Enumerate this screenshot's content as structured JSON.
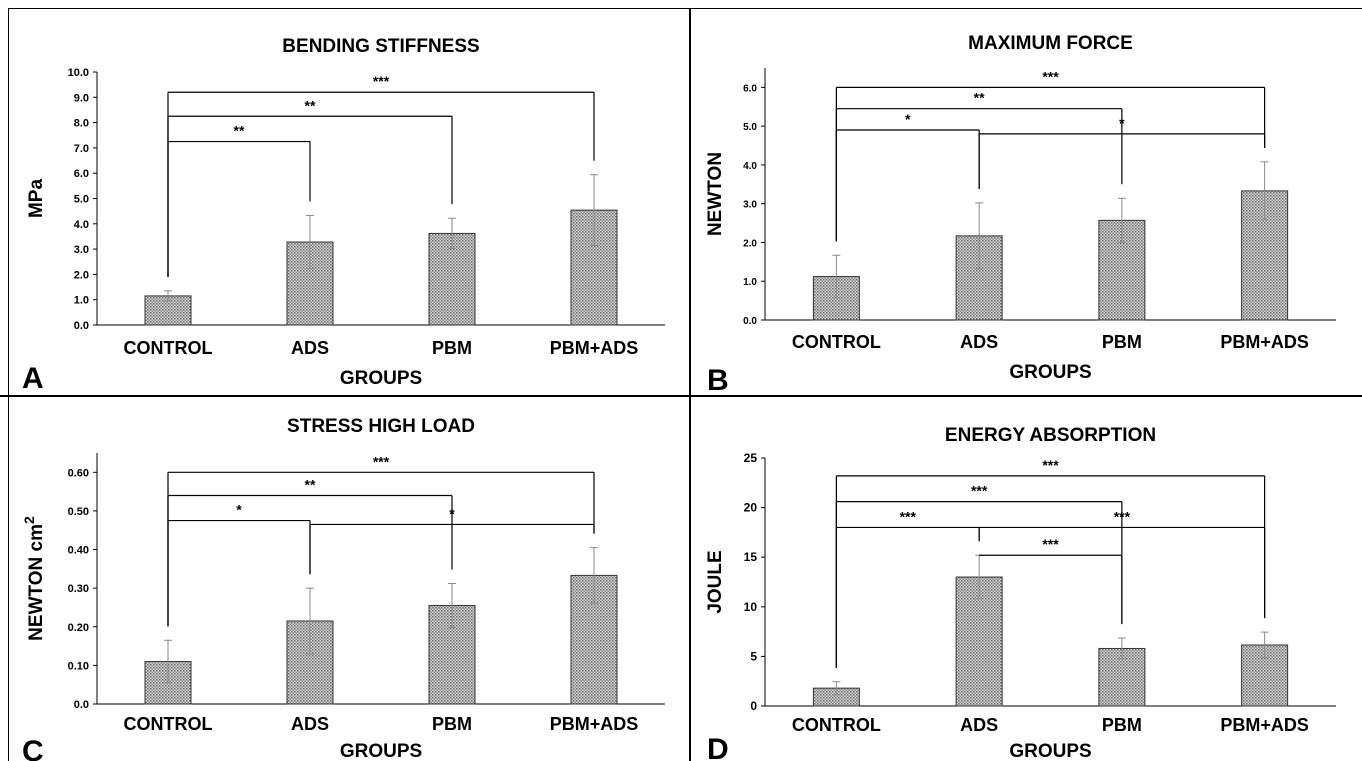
{
  "chart_data": [
    {
      "id": "A",
      "type": "bar",
      "panel_letter": "A",
      "title": "BENDING STIFFNESS",
      "xlabel": "GROUPS",
      "ylabel": "MPa",
      "categories": [
        "CONTROL",
        "ADS",
        "PBM",
        "PBM+ADS"
      ],
      "values": [
        1.15,
        3.28,
        3.62,
        4.54
      ],
      "errors": [
        0.2,
        1.05,
        0.6,
        1.4
      ],
      "ylim": [
        0,
        10
      ],
      "ytick_step": 1,
      "ytick_labels": [
        "0.0",
        "1.0",
        "2.0",
        "3.0",
        "4.0",
        "5.0",
        "6.0",
        "7.0",
        "8.0",
        "9.0",
        "10.0"
      ],
      "significance": [
        {
          "from": 0,
          "to": 1,
          "label": "**",
          "level": 7.25
        },
        {
          "from": 0,
          "to": 2,
          "label": "**",
          "level": 8.25
        },
        {
          "from": 0,
          "to": 3,
          "label": "***",
          "level": 9.2
        }
      ]
    },
    {
      "id": "B",
      "type": "bar",
      "panel_letter": "B",
      "title": "MAXIMUM FORCE",
      "xlabel": "GROUPS",
      "ylabel": "NEWTON",
      "categories": [
        "CONTROL",
        "ADS",
        "PBM",
        "PBM+ADS"
      ],
      "values": [
        1.12,
        2.17,
        2.57,
        3.33
      ],
      "errors": [
        0.55,
        0.85,
        0.57,
        0.75
      ],
      "ylim": [
        0,
        6.5
      ],
      "ytick_step": 1,
      "ytick_labels": [
        "0.0",
        "1.0",
        "2.0",
        "3.0",
        "4.0",
        "5.0",
        "6.0"
      ],
      "significance": [
        {
          "from": 0,
          "to": 1,
          "label": "*",
          "level": 4.9
        },
        {
          "from": 0,
          "to": 2,
          "label": "**",
          "level": 5.45
        },
        {
          "from": 0,
          "to": 3,
          "label": "***",
          "level": 6.0
        },
        {
          "from": 1,
          "to": 3,
          "label": "*",
          "level": 4.8
        }
      ]
    },
    {
      "id": "C",
      "type": "bar",
      "panel_letter": "C",
      "title": "STRESS HIGH LOAD",
      "xlabel": "GROUPS",
      "ylabel": "NEWTON cm",
      "ylabel_sup": "2",
      "categories": [
        "CONTROL",
        "ADS",
        "PBM",
        "PBM+ADS"
      ],
      "values": [
        0.11,
        0.215,
        0.255,
        0.333
      ],
      "errors": [
        0.055,
        0.085,
        0.057,
        0.072
      ],
      "ylim": [
        0,
        0.65
      ],
      "ytick_step": 0.1,
      "ytick_labels": [
        "0.0",
        "0.10",
        "0.20",
        "0.30",
        "0.40",
        "0.50",
        "0.60"
      ],
      "significance": [
        {
          "from": 0,
          "to": 1,
          "label": "*",
          "level": 0.475
        },
        {
          "from": 0,
          "to": 2,
          "label": "**",
          "level": 0.54
        },
        {
          "from": 0,
          "to": 3,
          "label": "***",
          "level": 0.6
        },
        {
          "from": 1,
          "to": 3,
          "label": "*",
          "level": 0.465
        }
      ]
    },
    {
      "id": "D",
      "type": "bar",
      "panel_letter": "D",
      "title": "ENERGY ABSORPTION",
      "xlabel": "GROUPS",
      "ylabel": "JOULE",
      "categories": [
        "CONTROL",
        "ADS",
        "PBM",
        "PBM+ADS"
      ],
      "values": [
        1.8,
        13.0,
        5.8,
        6.15
      ],
      "errors": [
        0.65,
        2.2,
        1.05,
        1.3
      ],
      "ylim": [
        0,
        25
      ],
      "ytick_step": 5,
      "ytick_labels": [
        "0",
        "5",
        "10",
        "15",
        "20",
        "25"
      ],
      "significance": [
        {
          "from": 0,
          "to": 1,
          "label": "***",
          "level": 18.0
        },
        {
          "from": 0,
          "to": 2,
          "label": "***",
          "level": 20.6
        },
        {
          "from": 0,
          "to": 3,
          "label": "***",
          "level": 23.2
        },
        {
          "from": 1,
          "to": 2,
          "label": "***",
          "level": 15.2
        },
        {
          "from": 1,
          "to": 3,
          "label": "***",
          "level": 18.0
        }
      ]
    }
  ],
  "colors": {
    "bar_fill": "#b8b8b8",
    "bar_stroke": "#333333",
    "axis": "#000000",
    "text": "#000000",
    "error": "#8a8a8a"
  }
}
